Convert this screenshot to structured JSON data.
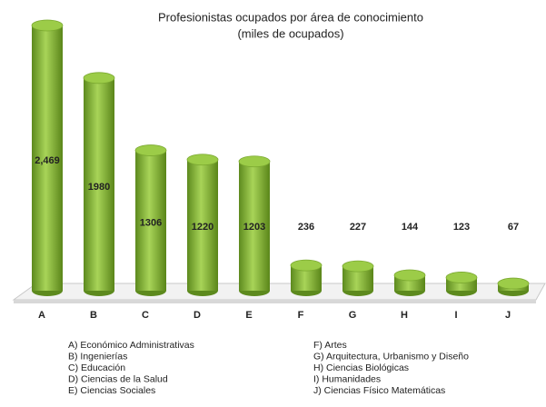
{
  "chart_data": {
    "type": "bar",
    "title": "Profesionistas ocupados por área de conocimiento",
    "subtitle": "(miles de ocupados)",
    "categories": [
      "A",
      "B",
      "C",
      "D",
      "E",
      "F",
      "G",
      "H",
      "I",
      "J"
    ],
    "values": [
      2469,
      1980,
      1306,
      1220,
      1203,
      236,
      227,
      144,
      123,
      67
    ],
    "value_labels": [
      "2,469",
      "1980",
      "1306",
      "1220",
      "1203",
      "236",
      "227",
      "144",
      "123",
      "67"
    ],
    "color": "#8ab83a",
    "legend": [
      "A) Económico Administrativas",
      "B) Ingenierías",
      "C) Educación",
      "D) Ciencias de la Salud",
      "E) Ciencias Sociales",
      "F) Artes",
      "G) Arquitectura, Urbanismo y Diseño",
      "H) Ciencias Biológicas",
      "I) Humanidades",
      "J) Ciencias Físico Matemáticas"
    ]
  }
}
